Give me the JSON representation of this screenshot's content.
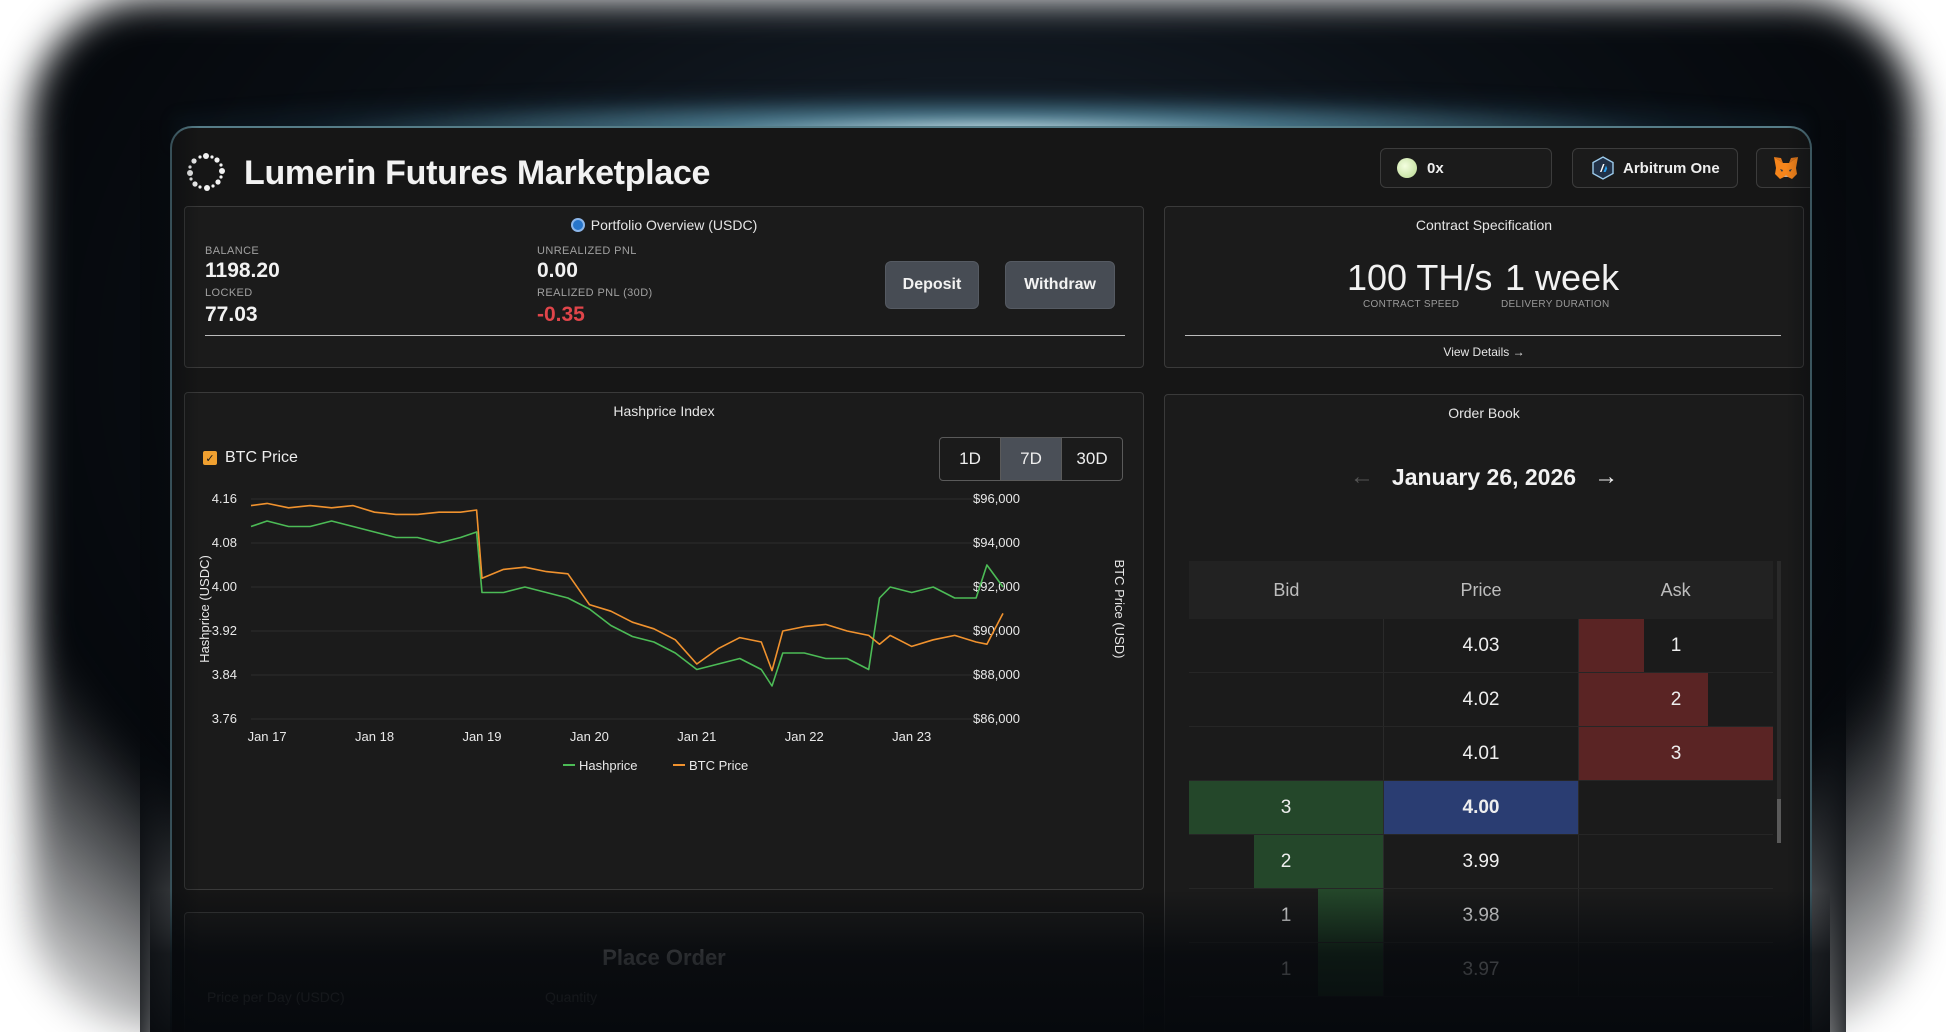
{
  "app": {
    "title": "Lumerin Futures Marketplace"
  },
  "header": {
    "wallet_label": "0x",
    "network_label": "Arbitrum One"
  },
  "portfolio": {
    "title": "Portfolio Overview (USDC)",
    "balance_label": "BALANCE",
    "balance_value": "1198.20",
    "locked_label": "LOCKED",
    "locked_value": "77.03",
    "unrealized_label": "UNREALIZED PNL",
    "unrealized_value": "0.00",
    "realized_label": "REALIZED PNL (30D)",
    "realized_value": "-0.35",
    "deposit_label": "Deposit",
    "withdraw_label": "Withdraw"
  },
  "contract_spec": {
    "title": "Contract Specification",
    "speed_value": "100 TH/s",
    "speed_label": "CONTRACT SPEED",
    "duration_value": "1 week",
    "duration_label": "DELIVERY DURATION",
    "details_link": "View Details →"
  },
  "hashprice_panel": {
    "title": "Hashprice Index",
    "btc_toggle_label": "BTC Price",
    "btc_toggle_checked": true,
    "ranges": [
      "1D",
      "7D",
      "30D"
    ],
    "active_range": "7D"
  },
  "chart_data": {
    "type": "line",
    "title": "Hashprice Index",
    "x_ticks": [
      "Jan 17",
      "Jan 18",
      "Jan 19",
      "Jan 20",
      "Jan 21",
      "Jan 22",
      "Jan 23"
    ],
    "x_range": [
      16.85,
      23.85
    ],
    "y_left": {
      "label": "Hashprice (USDC)",
      "ticks": [
        "4.16",
        "4.08",
        "4.00",
        "3.92",
        "3.84",
        "3.76"
      ],
      "range": [
        3.76,
        4.16
      ]
    },
    "y_right": {
      "label": "BTC Price (USD)",
      "ticks": [
        "$96,000",
        "$94,000",
        "$92,000",
        "$90,000",
        "$88,000",
        "$86,000"
      ],
      "range": [
        86000,
        96000
      ]
    },
    "grid": true,
    "legend_position": "bottom",
    "colors": {
      "hashprice": "#4cbb56",
      "btc": "#f0922e"
    },
    "series": [
      {
        "name": "Hashprice",
        "axis": "left",
        "x": [
          16.85,
          17.0,
          17.2,
          17.4,
          17.6,
          17.8,
          18.0,
          18.2,
          18.4,
          18.6,
          18.8,
          18.95,
          19.0,
          19.2,
          19.4,
          19.6,
          19.8,
          20.0,
          20.2,
          20.4,
          20.6,
          20.8,
          21.0,
          21.2,
          21.4,
          21.6,
          21.7,
          21.8,
          22.0,
          22.2,
          22.4,
          22.6,
          22.7,
          22.8,
          23.0,
          23.2,
          23.4,
          23.6,
          23.7,
          23.85
        ],
        "y": [
          4.11,
          4.12,
          4.11,
          4.11,
          4.12,
          4.11,
          4.1,
          4.09,
          4.09,
          4.08,
          4.09,
          4.1,
          3.99,
          3.99,
          4.0,
          3.99,
          3.98,
          3.96,
          3.93,
          3.91,
          3.9,
          3.88,
          3.85,
          3.86,
          3.87,
          3.85,
          3.82,
          3.88,
          3.88,
          3.87,
          3.87,
          3.85,
          3.98,
          4.0,
          3.99,
          4.0,
          3.98,
          3.98,
          4.04,
          4.0
        ]
      },
      {
        "name": "BTC Price",
        "axis": "right",
        "x": [
          16.85,
          17.0,
          17.2,
          17.4,
          17.6,
          17.8,
          18.0,
          18.2,
          18.4,
          18.6,
          18.8,
          18.95,
          19.0,
          19.2,
          19.4,
          19.6,
          19.8,
          20.0,
          20.2,
          20.4,
          20.6,
          20.8,
          21.0,
          21.2,
          21.4,
          21.6,
          21.7,
          21.8,
          22.0,
          22.2,
          22.4,
          22.6,
          22.7,
          22.8,
          23.0,
          23.2,
          23.4,
          23.6,
          23.7,
          23.85
        ],
        "y": [
          95700,
          95800,
          95600,
          95700,
          95600,
          95700,
          95400,
          95300,
          95300,
          95400,
          95400,
          95500,
          92400,
          92800,
          92900,
          92700,
          92600,
          91200,
          90900,
          90400,
          90100,
          89600,
          88500,
          89200,
          89700,
          89500,
          88200,
          90000,
          90200,
          90300,
          90000,
          89800,
          89400,
          89800,
          89300,
          89600,
          89800,
          89500,
          89400,
          90800
        ]
      }
    ]
  },
  "orderbook": {
    "title": "Order Book",
    "date": "January 26, 2026",
    "prev_arrow": "←",
    "next_arrow": "→",
    "headers": [
      "Bid",
      "Price",
      "Ask"
    ],
    "max_qty": 3,
    "rows": [
      {
        "bid": "",
        "price": "4.03",
        "ask": "1",
        "bid_qty": 0,
        "ask_qty": 1,
        "current": false
      },
      {
        "bid": "",
        "price": "4.02",
        "ask": "2",
        "bid_qty": 0,
        "ask_qty": 2,
        "current": false
      },
      {
        "bid": "",
        "price": "4.01",
        "ask": "3",
        "bid_qty": 0,
        "ask_qty": 3,
        "current": false
      },
      {
        "bid": "3",
        "price": "4.00",
        "ask": "",
        "bid_qty": 3,
        "ask_qty": 0,
        "current": true
      },
      {
        "bid": "2",
        "price": "3.99",
        "ask": "",
        "bid_qty": 2,
        "ask_qty": 0,
        "current": false
      },
      {
        "bid": "1",
        "price": "3.98",
        "ask": "",
        "bid_qty": 1,
        "ask_qty": 0,
        "current": false
      },
      {
        "bid": "1",
        "price": "3.97",
        "ask": "",
        "bid_qty": 1,
        "ask_qty": 0,
        "current": false
      }
    ]
  },
  "place_order": {
    "title": "Place Order",
    "price_label": "Price per Day (USDC)",
    "quantity_label": "Quantity"
  }
}
